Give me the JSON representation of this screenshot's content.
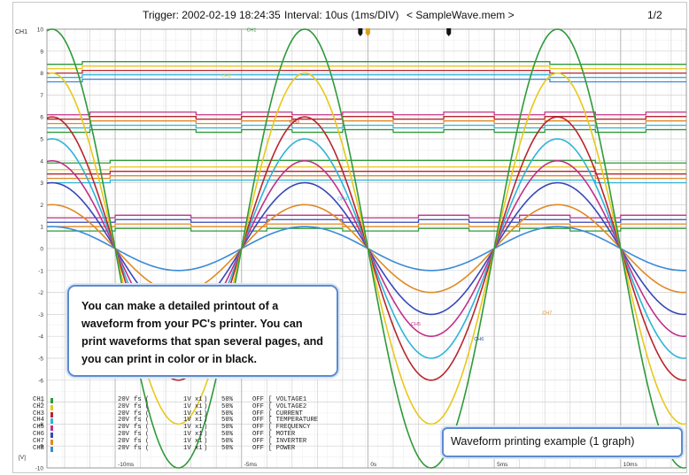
{
  "header": {
    "trigger": "Trigger: 2002-02-19 18:24:35",
    "interval": "Interval: 10us (1ms/DIV)",
    "file": "< SampleWave.mem >",
    "page": "1/2",
    "channel_tag": "CH1"
  },
  "callouts": {
    "note": "You can make a detailed printout of a waveform from your PC's printer. You can print waveforms that span several pages, and you can print in color or in black.",
    "example": "Waveform printing example (1 graph)"
  },
  "legend": [
    {
      "ch": "CH1",
      "range": "20V",
      "fs": "fs (",
      "scale": "1V x1",
      "close": ")",
      "pos": "50%",
      "filter": "OFF",
      "comment": "VOLTAGE1",
      "color": "#2e9a3a"
    },
    {
      "ch": "CH2",
      "range": "20V",
      "fs": "fs (",
      "scale": "1V x1",
      "close": ")",
      "pos": "50%",
      "filter": "OFF",
      "comment": "VOLTAGE2",
      "color": "#e8c81a"
    },
    {
      "ch": "CH3",
      "range": "20V",
      "fs": "fs (",
      "scale": "1V x1",
      "close": ")",
      "pos": "50%",
      "filter": "OFF",
      "comment": "CURRENT",
      "color": "#b8262e"
    },
    {
      "ch": "CH4",
      "range": "20V",
      "fs": "fs (",
      "scale": "1V x1",
      "close": ")",
      "pos": "50%",
      "filter": "OFF",
      "comment": "TEMPERATURE",
      "color": "#2eb4d8"
    },
    {
      "ch": "CH5",
      "range": "20V",
      "fs": "fs (",
      "scale": "1V x1",
      "close": ")",
      "pos": "50%",
      "filter": "OFF",
      "comment": "FREQUENCY",
      "color": "#c0308a"
    },
    {
      "ch": "CH6",
      "range": "20V",
      "fs": "fs (",
      "scale": "1V x1",
      "close": ")",
      "pos": "50%",
      "filter": "OFF",
      "comment": "MOTER",
      "color": "#3848b8"
    },
    {
      "ch": "CH7",
      "range": "20V",
      "fs": "fs (",
      "scale": "1V x1",
      "close": ")",
      "pos": "50%",
      "filter": "OFF",
      "comment": "INVERTER",
      "color": "#e08a24"
    },
    {
      "ch": "CH8",
      "range": "20V",
      "fs": "fs (",
      "scale": "1V x1",
      "close": ")",
      "pos": "50%",
      "filter": "OFF",
      "comment": "POWER",
      "color": "#3a8ad8"
    }
  ],
  "chart_data": {
    "type": "line",
    "x_unit": "ms",
    "y_unit": "[V]",
    "xlim": [
      -12.7,
      12.6
    ],
    "ylim": [
      -10,
      10
    ],
    "x_ticks": [
      -10,
      -5,
      0,
      5,
      10
    ],
    "x_tick_labels": [
      "-10ms",
      "-5ms",
      "0s",
      "5ms",
      "10ms"
    ],
    "y_ticks": [
      -10,
      -9,
      -8,
      -7,
      -6,
      -5,
      -4,
      -3,
      -2,
      -1,
      0,
      1,
      2,
      3,
      4,
      5,
      6,
      7,
      8,
      9,
      10
    ],
    "y_tick_labels": [
      "-10",
      "-9",
      "-8",
      "-7",
      "-6",
      "-5",
      "-4",
      "-3",
      "-2",
      "-1",
      "0",
      "1",
      "2",
      "3",
      "4",
      "5",
      "6",
      "7",
      "8",
      "9",
      "10"
    ],
    "grid": true,
    "sine_period_ms": 10,
    "sine_series": [
      {
        "channel": "CH1",
        "amplitude": 10,
        "color": "#2e9a3a"
      },
      {
        "channel": "CH2",
        "amplitude": 8,
        "color": "#e8c81a"
      },
      {
        "channel": "CH3",
        "amplitude": 6,
        "color": "#b8262e"
      },
      {
        "channel": "CH4",
        "amplitude": 5,
        "color": "#2eb4d8"
      },
      {
        "channel": "CH5",
        "amplitude": 4,
        "color": "#c0308a"
      },
      {
        "channel": "CH6",
        "amplitude": 3,
        "color": "#3848b8"
      },
      {
        "channel": "CH7",
        "amplitude": 2,
        "color": "#e08a24"
      },
      {
        "channel": "CH8",
        "amplitude": 1,
        "color": "#3a8ad8"
      }
    ],
    "logic_groups": [
      {
        "baseline_levels": [
          8.4,
          8.2,
          8.0,
          7.8,
          7.6
        ],
        "colors": [
          "#2e9a3a",
          "#e8c81a",
          "#b8262e",
          "#2eb4d8",
          "#3a8ad8"
        ],
        "edges_ms": [
          -11.3,
          7.2
        ]
      },
      {
        "baseline_levels": [
          6.1,
          5.9,
          5.7,
          5.5,
          5.3
        ],
        "colors": [
          "#c0308a",
          "#b8262e",
          "#e08a24",
          "#2eb4d8",
          "#2e9a3a"
        ],
        "edges_ms": [
          -11.0,
          -6.8,
          -5.0,
          -3.0,
          -1.0,
          1.0,
          3.0,
          5.0,
          7.0,
          9.0,
          11.0
        ]
      },
      {
        "baseline_levels": [
          3.9,
          3.6,
          3.4,
          3.2,
          3.0
        ],
        "colors": [
          "#2e9a3a",
          "#e8c81a",
          "#b8262e",
          "#e08a24",
          "#2eb4d8"
        ],
        "edges_ms": [
          -10.2,
          9.0
        ]
      },
      {
        "baseline_levels": [
          1.4,
          1.2,
          1.0,
          0.8
        ],
        "colors": [
          "#c0308a",
          "#3848b8",
          "#e08a24",
          "#2e9a3a"
        ],
        "edges_ms": [
          -10.0,
          -7.0,
          -4.0,
          -1.0,
          2.0,
          4.0,
          6.0,
          8.0,
          10.0
        ]
      }
    ],
    "trace_labels": [
      {
        "text": "CH1",
        "x": -4.8,
        "y": 9.9,
        "color": "#2e9a3a"
      },
      {
        "text": "CH2",
        "x": -5.8,
        "y": 7.8,
        "color": "#e8c81a"
      },
      {
        "text": "CH3",
        "x": -3.1,
        "y": 5.7,
        "color": "#b8262e"
      },
      {
        "text": "CH4",
        "x": -1.2,
        "y": 2.2,
        "color": "#2eb4d8"
      },
      {
        "text": "CH5",
        "x": 1.7,
        "y": -3.5,
        "color": "#c0308a"
      },
      {
        "text": "CH6",
        "x": 4.2,
        "y": -4.2,
        "color": "#3848b8"
      },
      {
        "text": "CH7",
        "x": 6.9,
        "y": -3.0,
        "color": "#e08a24"
      }
    ]
  }
}
